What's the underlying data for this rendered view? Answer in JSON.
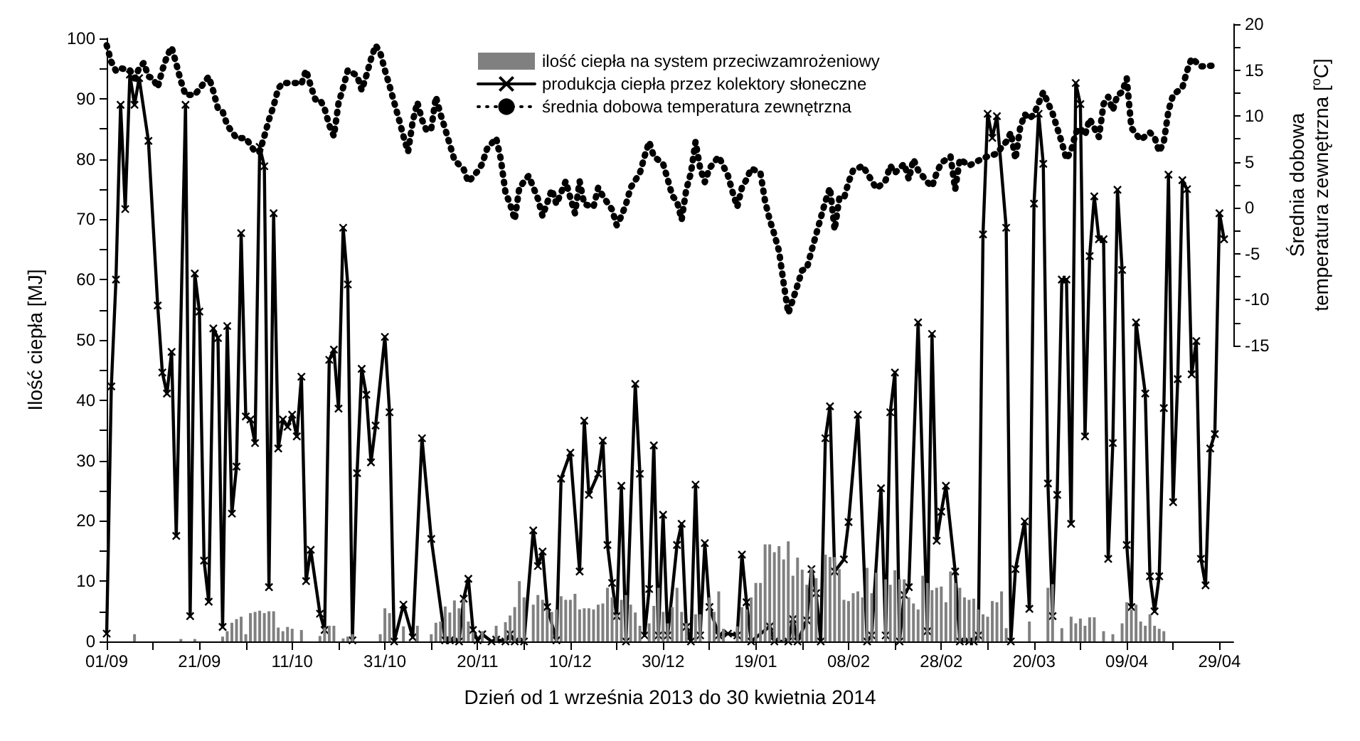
{
  "chart_data": {
    "type": "line",
    "xlabel": "Dzień od 1 września 2013 do 30 kwietnia 2014",
    "ylabel": "Ilość ciepła [MJ]",
    "y2label": "Średnia dobowa\ntemperatura zewnętrzna [$^{o}$C]",
    "xlim": [
      "2013-09-01",
      "2014-05-02"
    ],
    "xticks": [
      {
        "value": "2013-09-01",
        "label": "01/09"
      },
      {
        "value": "2013-09-11",
        "label": null
      },
      {
        "value": "2013-09-21",
        "label": "21/09"
      },
      {
        "value": "2013-10-01",
        "label": null
      },
      {
        "value": "2013-10-11",
        "label": "11/10"
      },
      {
        "value": "2013-10-21",
        "label": null
      },
      {
        "value": "2013-10-31",
        "label": "31/10"
      },
      {
        "value": "2013-11-10",
        "label": null
      },
      {
        "value": "2013-11-20",
        "label": "20/11"
      },
      {
        "value": "2013-11-30",
        "label": null
      },
      {
        "value": "2013-12-10",
        "label": "10/12"
      },
      {
        "value": "2013-12-20",
        "label": null
      },
      {
        "value": "2013-12-30",
        "label": "30/12"
      },
      {
        "value": "2014-01-09",
        "label": null
      },
      {
        "value": "2014-01-19",
        "label": "19/01"
      },
      {
        "value": "2014-01-29",
        "label": null
      },
      {
        "value": "2014-02-08",
        "label": "08/02"
      },
      {
        "value": "2014-02-18",
        "label": null
      },
      {
        "value": "2014-02-28",
        "label": "28/02"
      },
      {
        "value": "2014-03-10",
        "label": null
      },
      {
        "value": "2014-03-20",
        "label": "20/03"
      },
      {
        "value": "2014-03-30",
        "label": null
      },
      {
        "value": "2014-04-09",
        "label": "09/04"
      },
      {
        "value": "2014-04-19",
        "label": null
      },
      {
        "value": "2014-04-29",
        "label": "29/04"
      }
    ],
    "ylim": [
      0,
      100
    ],
    "yticks": [
      0,
      {
        "value": 5,
        "label": null
      },
      10,
      {
        "value": 15,
        "label": null
      },
      20,
      {
        "value": 25,
        "label": null
      },
      30,
      {
        "value": 35,
        "label": null
      },
      40,
      {
        "value": 45,
        "label": null
      },
      50,
      {
        "value": 55,
        "label": null
      },
      60,
      {
        "value": 65,
        "label": null
      },
      70,
      {
        "value": 75,
        "label": null
      },
      80,
      {
        "value": 85,
        "label": null
      },
      90,
      {
        "value": 95,
        "label": null
      },
      100
    ],
    "y2lim": [
      -15,
      20
    ],
    "y2ticks": [
      -15,
      {
        "value": -12.5,
        "label": null
      },
      -10,
      {
        "value": -7.5,
        "label": null
      },
      -5,
      {
        "value": -2.5,
        "label": null
      },
      0,
      {
        "value": 2.5,
        "label": null
      },
      5,
      {
        "value": 7.5,
        "label": null
      },
      10,
      {
        "value": 12.5,
        "label": null
      },
      15,
      {
        "value": 17.5,
        "label": null
      },
      20
    ],
    "grid": false,
    "legend": "top",
    "series": [
      {
        "name": "ilość ciepła na system przeciwzamrożeniowy",
        "type": "bar",
        "color": "#808080",
        "x": [
          "2013-09-07",
          "2013-09-17",
          "2013-09-20",
          "2013-09-26",
          "2013-09-27",
          "2013-09-28",
          "2013-09-29",
          "2013-09-30",
          "2013-10-01",
          "2013-10-02",
          "2013-10-03",
          "2013-10-04",
          "2013-10-05",
          "2013-10-06",
          "2013-10-07",
          "2013-10-08",
          "2013-10-09",
          "2013-10-10",
          "2013-10-11",
          "2013-10-13",
          "2013-10-17",
          "2013-10-18",
          "2013-10-19",
          "2013-10-20",
          "2013-10-22",
          "2013-10-23",
          "2013-10-24",
          "2013-10-30",
          "2013-10-31",
          "2013-11-01",
          "2013-11-04",
          "2013-11-07",
          "2013-11-10",
          "2013-11-11",
          "2013-11-12",
          "2013-11-13",
          "2013-11-14",
          "2013-11-15",
          "2013-11-16",
          "2013-11-17",
          "2013-11-18",
          "2013-11-19",
          "2013-11-21",
          "2013-11-24",
          "2013-11-26",
          "2013-11-27",
          "2013-11-28",
          "2013-11-29",
          "2013-11-30",
          "2013-12-02",
          "2013-12-03",
          "2013-12-04",
          "2013-12-05",
          "2013-12-06",
          "2013-12-07",
          "2013-12-08",
          "2013-12-09",
          "2013-12-10",
          "2013-12-11",
          "2013-12-12",
          "2013-12-13",
          "2013-12-14",
          "2013-12-15",
          "2013-12-16",
          "2013-12-17",
          "2013-12-18",
          "2013-12-19",
          "2013-12-20",
          "2013-12-21",
          "2013-12-22",
          "2013-12-23",
          "2013-12-24",
          "2013-12-25",
          "2013-12-27",
          "2013-12-28",
          "2013-12-29",
          "2013-12-30",
          "2013-12-31",
          "2014-01-01",
          "2014-01-02",
          "2014-01-03",
          "2014-01-04",
          "2014-01-06",
          "2014-01-07",
          "2014-01-09",
          "2014-01-10",
          "2014-01-11",
          "2014-01-12",
          "2014-01-15",
          "2014-01-16",
          "2014-01-17",
          "2014-01-18",
          "2014-01-19",
          "2014-01-20",
          "2014-01-21",
          "2014-01-22",
          "2014-01-23",
          "2014-01-24",
          "2014-01-25",
          "2014-01-26",
          "2014-01-27",
          "2014-01-28",
          "2014-01-29",
          "2014-01-30",
          "2014-01-31",
          "2014-02-01",
          "2014-02-03",
          "2014-02-04",
          "2014-02-05",
          "2014-02-06",
          "2014-02-07",
          "2014-02-08",
          "2014-02-09",
          "2014-02-10",
          "2014-02-11",
          "2014-02-12",
          "2014-02-13",
          "2014-02-14",
          "2014-02-16",
          "2014-02-17",
          "2014-02-18",
          "2014-02-19",
          "2014-02-20",
          "2014-02-21",
          "2014-02-22",
          "2014-02-23",
          "2014-02-24",
          "2014-02-25",
          "2014-02-26",
          "2014-02-27",
          "2014-02-28",
          "2014-03-01",
          "2014-03-02",
          "2014-03-03",
          "2014-03-04",
          "2014-03-05",
          "2014-03-06",
          "2014-03-07",
          "2014-03-08",
          "2014-03-09",
          "2014-03-10",
          "2014-03-11",
          "2014-03-12",
          "2014-03-13",
          "2014-03-14",
          "2014-03-19",
          "2014-03-23",
          "2014-03-24",
          "2014-03-26",
          "2014-03-28",
          "2014-03-29",
          "2014-03-30",
          "2014-03-31",
          "2014-04-01",
          "2014-04-02",
          "2014-04-04",
          "2014-04-06",
          "2014-04-08",
          "2014-04-09",
          "2014-04-10",
          "2014-04-11",
          "2014-04-12",
          "2014-04-13",
          "2014-04-14",
          "2014-04-15",
          "2014-04-16",
          "2014-04-17"
        ],
        "values": [
          1.2,
          0.4,
          0.4,
          0.8,
          1.7,
          3.1,
          3.7,
          4.1,
          1.2,
          4.7,
          4.9,
          5.1,
          4.7,
          5,
          5,
          2.3,
          1.7,
          2.4,
          2.1,
          1.9,
          0.9,
          2.3,
          2.6,
          2.6,
          0.5,
          0.8,
          1.2,
          1.2,
          5.5,
          4.7,
          2.5,
          2.6,
          1.2,
          3.1,
          3.3,
          5.8,
          4.8,
          6.8,
          5.5,
          7,
          3.3,
          1.5,
          1.7,
          2.6,
          3.2,
          4.3,
          5.7,
          10,
          7.3,
          6.1,
          7.7,
          6.9,
          5.3,
          4.9,
          5.3,
          7.5,
          6.9,
          6.9,
          7.9,
          5.3,
          5.5,
          5.5,
          5.3,
          6.1,
          6.3,
          8.9,
          7.3,
          4.5,
          6.9,
          7.7,
          6.1,
          4.8,
          2.6,
          3,
          5.9,
          8.9,
          4.9,
          3,
          5.7,
          8.9,
          4.9,
          3,
          4.5,
          4.5,
          7.3,
          4.9,
          8.3,
          2.1,
          2.5,
          5.7,
          5.3,
          7.3,
          9.7,
          9.7,
          16.1,
          16.1,
          14.8,
          15.8,
          13.6,
          16.6,
          10.9,
          13.9,
          11.9,
          9.4,
          12.2,
          10.5,
          14.4,
          14,
          14,
          12,
          6.9,
          6.7,
          8,
          8.3,
          7.3,
          12.2,
          8,
          11.4,
          10.3,
          9.4,
          11.8,
          10.3,
          10.3,
          7.3,
          6.3,
          5.3,
          10.9,
          9.7,
          8.5,
          8.9,
          9.1,
          6.5,
          11.6,
          9.7,
          8.9,
          7.3,
          6.9,
          7.1,
          5.3,
          4.5,
          4.1,
          6.7,
          6.5,
          8.3,
          2.2,
          3.3,
          8.9,
          9.5,
          2.2,
          4.1,
          3,
          3.8,
          2.6,
          4,
          4,
          1.7,
          1.2,
          3,
          6.5,
          5.3,
          6.1,
          3.3,
          2.6,
          4.5,
          2.6,
          2.1,
          1.7
        ]
      },
      {
        "name": "produkcja ciepła przez kolektory słoneczne",
        "color": "#000000",
        "marker": "cross",
        "line_style": "solid",
        "x": [
          "2013-09-01",
          "2013-09-02",
          "2013-09-03",
          "2013-09-04",
          "2013-09-05",
          "2013-09-06",
          "2013-09-07",
          "2013-09-08",
          "2013-09-10",
          "2013-09-12",
          "2013-09-13",
          "2013-09-14",
          "2013-09-15",
          "2013-09-16",
          "2013-09-18",
          "2013-09-19",
          "2013-09-20",
          "2013-09-21",
          "2013-09-22",
          "2013-09-23",
          "2013-09-24",
          "2013-09-25",
          "2013-09-26",
          "2013-09-27",
          "2013-09-28",
          "2013-09-29",
          "2013-09-30",
          "2013-10-01",
          "2013-10-02",
          "2013-10-03",
          "2013-10-04",
          "2013-10-05",
          "2013-10-06",
          "2013-10-07",
          "2013-10-08",
          "2013-10-09",
          "2013-10-10",
          "2013-10-11",
          "2013-10-12",
          "2013-10-13",
          "2013-10-14",
          "2013-10-15",
          "2013-10-17",
          "2013-10-18",
          "2013-10-19",
          "2013-10-20",
          "2013-10-21",
          "2013-10-22",
          "2013-10-23",
          "2013-10-24",
          "2013-10-25",
          "2013-10-26",
          "2013-10-27",
          "2013-10-28",
          "2013-10-29",
          "2013-10-31",
          "2013-11-01",
          "2013-11-02",
          "2013-11-04",
          "2013-11-06",
          "2013-11-08",
          "2013-11-10",
          "2013-11-13",
          "2013-11-14",
          "2013-11-16",
          "2013-11-17",
          "2013-11-18",
          "2013-11-19",
          "2013-11-20",
          "2013-11-21",
          "2013-11-23",
          "2013-11-24",
          "2013-11-26",
          "2013-11-27",
          "2013-11-28",
          "2013-11-30",
          "2013-12-02",
          "2013-12-03",
          "2013-12-04",
          "2013-12-05",
          "2013-12-07",
          "2013-12-08",
          "2013-12-10",
          "2013-12-12",
          "2013-12-13",
          "2013-12-14",
          "2013-12-16",
          "2013-12-17",
          "2013-12-18",
          "2013-12-19",
          "2013-12-20",
          "2013-12-21",
          "2013-12-22",
          "2013-12-24",
          "2013-12-25",
          "2013-12-26",
          "2013-12-27",
          "2013-12-28",
          "2013-12-29",
          "2013-12-30",
          "2013-12-31",
          "2014-01-02",
          "2014-01-03",
          "2014-01-04",
          "2014-01-05",
          "2014-01-06",
          "2014-01-07",
          "2014-01-08",
          "2014-01-09",
          "2014-01-11",
          "2014-01-13",
          "2014-01-15",
          "2014-01-16",
          "2014-01-17",
          "2014-01-18",
          "2014-01-22",
          "2014-01-23",
          "2014-01-26",
          "2014-01-27",
          "2014-01-28",
          "2014-01-30",
          "2014-01-31",
          "2014-02-01",
          "2014-02-02",
          "2014-02-03",
          "2014-02-04",
          "2014-02-05",
          "2014-02-07",
          "2014-02-08",
          "2014-02-10",
          "2014-02-12",
          "2014-02-13",
          "2014-02-15",
          "2014-02-16",
          "2014-02-17",
          "2014-02-18",
          "2014-02-19",
          "2014-02-20",
          "2014-02-21",
          "2014-02-23",
          "2014-02-25",
          "2014-02-26",
          "2014-02-27",
          "2014-02-28",
          "2014-03-01",
          "2014-03-03",
          "2014-03-04",
          "2014-03-06",
          "2014-03-07",
          "2014-03-08",
          "2014-03-09",
          "2014-03-10",
          "2014-03-11",
          "2014-03-12",
          "2014-03-14",
          "2014-03-15",
          "2014-03-16",
          "2014-03-18",
          "2014-03-19",
          "2014-03-20",
          "2014-03-21",
          "2014-03-22",
          "2014-03-23",
          "2014-03-24",
          "2014-03-25",
          "2014-03-26",
          "2014-03-27",
          "2014-03-28",
          "2014-03-29",
          "2014-03-30",
          "2014-03-31",
          "2014-04-01",
          "2014-04-02",
          "2014-04-03",
          "2014-04-04",
          "2014-04-05",
          "2014-04-06",
          "2014-04-07",
          "2014-04-08",
          "2014-04-09",
          "2014-04-10",
          "2014-04-11",
          "2014-04-13",
          "2014-04-14",
          "2014-04-15",
          "2014-04-16",
          "2014-04-17",
          "2014-04-18",
          "2014-04-19",
          "2014-04-20",
          "2014-04-21",
          "2014-04-22",
          "2014-04-23",
          "2014-04-24",
          "2014-04-25",
          "2014-04-26",
          "2014-04-27",
          "2014-04-28",
          "2014-04-29",
          "2014-04-30"
        ],
        "values": [
          1.3,
          42.3,
          60,
          89,
          71.7,
          94,
          89,
          93.4,
          83,
          55.7,
          44.6,
          41.1,
          48,
          17.5,
          89,
          4.2,
          61,
          54.7,
          13.4,
          6.6,
          51.9,
          50.3,
          2.4,
          52.3,
          21.2,
          29,
          67.7,
          37.3,
          36.8,
          32.9,
          82,
          78.8,
          9,
          71,
          32,
          36.8,
          35.6,
          37.6,
          34,
          43.9,
          10,
          15.2,
          4.6,
          1.9,
          46.7,
          48.4,
          38.6,
          68.6,
          59.2,
          0.2,
          27.9,
          45.2,
          40.9,
          29.7,
          35.8,
          50.5,
          38,
          0,
          6.1,
          0.7,
          33.7,
          17,
          0.2,
          0.2,
          0,
          7.1,
          10.4,
          1.9,
          0.2,
          1.2,
          0,
          0.3,
          0,
          1.2,
          0,
          0,
          18.4,
          12.5,
          14.9,
          5.7,
          0.2,
          27,
          31.3,
          11.6,
          36.6,
          24.3,
          27.8,
          33.3,
          16,
          9.7,
          4.2,
          25.8,
          0,
          42.7,
          27.8,
          1,
          8.7,
          32.5,
          1,
          21,
          1,
          16,
          19.5,
          2.4,
          0,
          26,
          1,
          16.3,
          5.7,
          1,
          1.3,
          1,
          14.4,
          6.5,
          0,
          2.5,
          0,
          0,
          3.7,
          0,
          3.5,
          12,
          8,
          0,
          33.7,
          39,
          11.6,
          13.6,
          19.8,
          37.6,
          0,
          1,
          25.4,
          1,
          38,
          44.6,
          0,
          7.7,
          9,
          52.9,
          1.7,
          51,
          16.7,
          21.5,
          25.8,
          11.6,
          0,
          0,
          0,
          1,
          67.5,
          87.5,
          83.5,
          87.1,
          68.6,
          0,
          12,
          19.9,
          5.4,
          72.6,
          87.5,
          79.2,
          26.2,
          4.2,
          24.3,
          60,
          60,
          19.5,
          92.6,
          89.1,
          34,
          63.9,
          73.8,
          66.7,
          66.7,
          13.7,
          32.9,
          74.9,
          61.6,
          16,
          5.7,
          52.9,
          41.1,
          10.8,
          5,
          10.8,
          38.7,
          77.4,
          23.1,
          43.5,
          76.5,
          75,
          44.3,
          49.8,
          13.7,
          9.3,
          32,
          34.4,
          71,
          66.7
        ]
      },
      {
        "name": "średnia dobowa temperatura zewnętrzna",
        "axis": "y2",
        "color": "#000000",
        "marker": "none",
        "line_style": "dotted",
        "x": [
          "2013-09-01",
          "2013-09-02",
          "2013-09-03",
          "2013-09-04",
          "2013-09-06",
          "2013-09-07",
          "2013-09-08",
          "2013-09-09",
          "2013-09-10",
          "2013-09-11",
          "2013-09-12",
          "2013-09-13",
          "2013-09-14",
          "2013-09-15",
          "2013-09-16",
          "2013-09-17",
          "2013-09-18",
          "2013-09-20",
          "2013-09-22",
          "2013-09-23",
          "2013-09-24",
          "2013-09-25",
          "2013-09-26",
          "2013-09-27",
          "2013-09-29",
          "2013-10-01",
          "2013-10-03",
          "2013-10-04",
          "2013-10-05",
          "2013-10-06",
          "2013-10-07",
          "2013-10-08",
          "2013-10-09",
          "2013-10-12",
          "2013-10-13",
          "2013-10-14",
          "2013-10-15",
          "2013-10-16",
          "2013-10-17",
          "2013-10-18",
          "2013-10-19",
          "2013-10-20",
          "2013-10-21",
          "2013-10-22",
          "2013-10-23",
          "2013-10-25",
          "2013-10-26",
          "2013-10-27",
          "2013-10-28",
          "2013-10-29",
          "2013-10-30",
          "2013-10-31",
          "2013-11-01",
          "2013-11-02",
          "2013-11-03",
          "2013-11-04",
          "2013-11-05",
          "2013-11-06",
          "2013-11-07",
          "2013-11-08",
          "2013-11-09",
          "2013-11-10",
          "2013-11-11",
          "2013-11-12",
          "2013-11-13",
          "2013-11-14",
          "2013-11-15",
          "2013-11-17",
          "2013-11-18",
          "2013-11-20",
          "2013-11-21",
          "2013-11-22",
          "2013-11-24",
          "2013-11-25",
          "2013-11-26",
          "2013-11-27",
          "2013-11-28",
          "2013-11-29",
          "2013-12-01",
          "2013-12-03",
          "2013-12-04",
          "2013-12-06",
          "2013-12-07",
          "2013-12-09",
          "2013-12-10",
          "2013-12-11",
          "2013-12-12",
          "2013-12-13",
          "2013-12-15",
          "2013-12-16",
          "2013-12-17",
          "2013-12-19",
          "2013-12-20",
          "2013-12-21",
          "2013-12-22",
          "2013-12-23",
          "2013-12-25",
          "2013-12-26",
          "2013-12-27",
          "2013-12-28",
          "2013-12-30",
          "2013-12-31",
          "2014-01-01",
          "2014-01-02",
          "2014-01-03",
          "2014-01-04",
          "2014-01-05",
          "2014-01-06",
          "2014-01-07",
          "2014-01-08",
          "2014-01-09",
          "2014-01-11",
          "2014-01-13",
          "2014-01-14",
          "2014-01-15",
          "2014-01-16",
          "2014-01-17",
          "2014-01-18",
          "2014-01-20",
          "2014-01-21",
          "2014-01-22",
          "2014-01-23",
          "2014-01-24",
          "2014-01-25",
          "2014-01-26",
          "2014-01-27",
          "2014-01-28",
          "2014-01-29",
          "2014-01-30",
          "2014-01-31",
          "2014-02-01",
          "2014-02-02",
          "2014-02-03",
          "2014-02-04",
          "2014-02-05",
          "2014-02-06",
          "2014-02-07",
          "2014-02-08",
          "2014-02-09",
          "2014-02-10",
          "2014-02-11",
          "2014-02-12",
          "2014-02-14",
          "2014-02-15",
          "2014-02-16",
          "2014-02-17",
          "2014-02-18",
          "2014-02-20",
          "2014-02-21",
          "2014-02-22",
          "2014-02-23",
          "2014-02-25",
          "2014-02-26",
          "2014-02-27",
          "2014-02-28",
          "2014-03-02",
          "2014-03-03",
          "2014-03-04",
          "2014-03-06",
          "2014-03-09",
          "2014-03-10",
          "2014-03-12",
          "2014-03-13",
          "2014-03-14",
          "2014-03-15",
          "2014-03-16",
          "2014-03-17",
          "2014-03-18",
          "2014-03-19",
          "2014-03-20",
          "2014-03-22",
          "2014-03-24",
          "2014-03-25",
          "2014-03-26",
          "2014-03-27",
          "2014-03-28",
          "2014-03-29",
          "2014-03-30",
          "2014-03-31",
          "2014-04-01",
          "2014-04-03",
          "2014-04-04",
          "2014-04-05",
          "2014-04-06",
          "2014-04-07",
          "2014-04-08",
          "2014-04-09",
          "2014-04-10",
          "2014-04-12",
          "2014-04-14",
          "2014-04-15",
          "2014-04-16",
          "2014-04-17",
          "2014-04-18",
          "2014-04-19",
          "2014-04-21",
          "2014-04-22",
          "2014-04-23",
          "2014-04-25",
          "2014-04-28"
        ],
        "values": [
          17.7,
          15.9,
          14.9,
          15.2,
          15,
          14.1,
          15.2,
          15.8,
          14.3,
          14.1,
          13.1,
          15,
          16.5,
          17.5,
          15.7,
          13.8,
          12.3,
          12.3,
          13.6,
          14.3,
          12.7,
          10.8,
          10.5,
          9,
          7.6,
          7.6,
          6.1,
          6.1,
          7.8,
          9.6,
          11.1,
          13,
          13.6,
          13.6,
          13.5,
          15,
          13.3,
          11.8,
          11.8,
          10.8,
          9,
          7.8,
          11.4,
          13.1,
          15,
          14.4,
          12.8,
          14.4,
          16.2,
          17.7,
          16.9,
          15,
          13.3,
          11.5,
          9.7,
          7.8,
          6.1,
          9.4,
          11.5,
          9.6,
          8.4,
          8.6,
          12.1,
          10.2,
          8.6,
          6.9,
          5.2,
          4.2,
          2.8,
          4,
          4.8,
          6.4,
          7.6,
          5.3,
          1.7,
          0.4,
          -1.3,
          2.2,
          3.5,
          1,
          -0.9,
          2,
          0.4,
          2.9,
          1.1,
          -0.6,
          2.9,
          0.4,
          0.1,
          2.2,
          1.3,
          -0.2,
          -1.9,
          -0.9,
          0.4,
          2.2,
          3.8,
          5.6,
          7.2,
          5.6,
          4.8,
          3.1,
          1.3,
          0.7,
          -1.3,
          2,
          3.8,
          7.2,
          4.3,
          2.8,
          4.3,
          5.6,
          3.5,
          1.7,
          0.1,
          2.2,
          3.1,
          4.3,
          3.8,
          0.7,
          -1.3,
          -2.9,
          -4.7,
          -8.2,
          -11.5,
          -10,
          -8.4,
          -6.8,
          -6.6,
          -4.7,
          -2.9,
          -1.1,
          0.7,
          2.2,
          -2.4,
          1,
          1,
          2.8,
          4.1,
          4.3,
          4.6,
          3.8,
          2.1,
          2.5,
          3,
          4.6,
          3.8,
          4.8,
          3.1,
          5.3,
          4.1,
          2.8,
          2.3,
          3.8,
          4.9,
          5.6,
          2,
          5.3,
          4.6,
          5.4,
          5.6,
          5.9,
          6.6,
          7.2,
          8.2,
          5.3,
          8.7,
          10.2,
          9.7,
          10.2,
          12.6,
          10.3,
          8.7,
          7.1,
          5.3,
          6.2,
          8.2,
          8.7,
          7.9,
          9.7,
          7.7,
          11.3,
          12.1,
          10.6,
          12.3,
          12.6,
          14.1,
          8.7,
          7.4,
          8.2,
          7.7,
          6.1,
          7.2,
          10.6,
          12.3,
          13.1,
          14.9,
          16.3,
          15.4,
          15.5
        ]
      }
    ]
  }
}
